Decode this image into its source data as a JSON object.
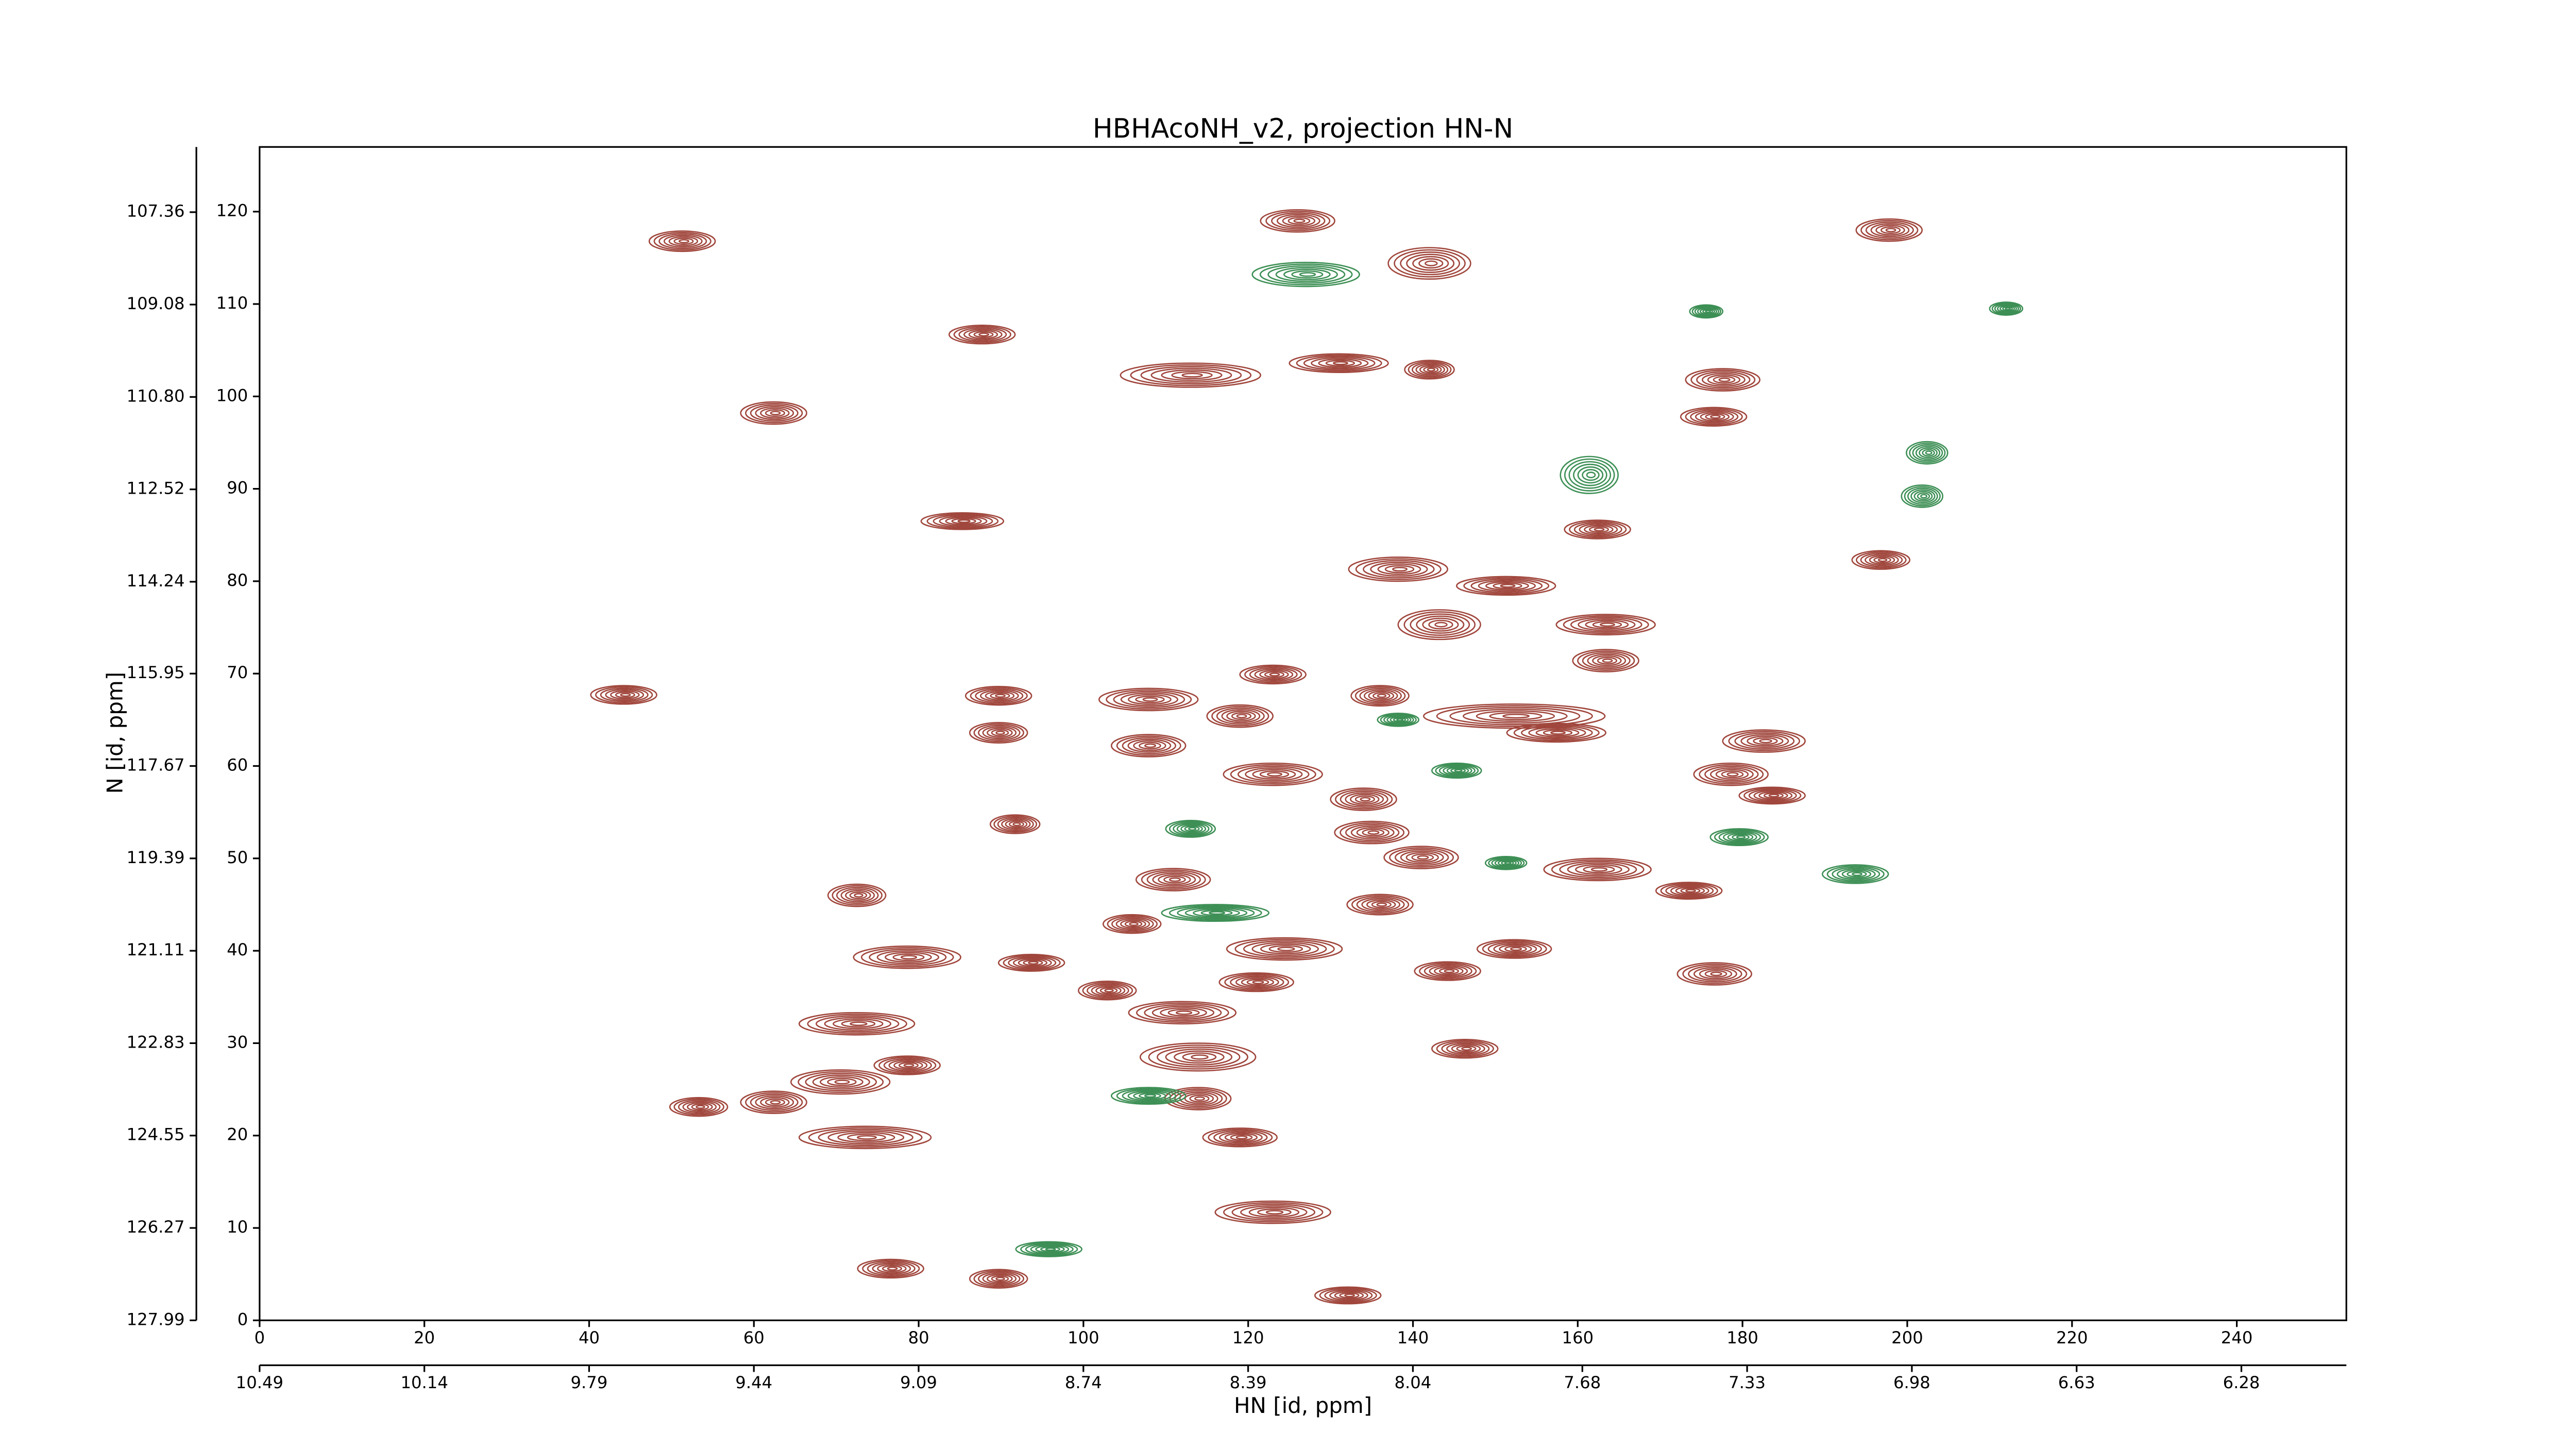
{
  "chart_data": {
    "type": "contour",
    "title": "HBHAcoNH_v2, projection HN-N",
    "x_label": "HN [id, ppm]",
    "y_label": "N [id, ppm]",
    "xlim": [
      0,
      253.3
    ],
    "xticks": [
      0,
      20,
      40,
      60,
      80,
      100,
      120,
      140,
      160,
      180,
      200,
      220,
      240
    ],
    "x2lim": [
      10.49,
      6.057
    ],
    "x2ticks": [
      10.49,
      10.14,
      9.79,
      9.44,
      9.09,
      8.74,
      8.39,
      8.04,
      7.68,
      7.33,
      6.98,
      6.63,
      6.28
    ],
    "ylim": [
      127.99,
      106.146
    ],
    "yticks": [
      127.99,
      126.27,
      124.55,
      122.83,
      121.11,
      119.39,
      117.67,
      115.95,
      114.24,
      112.52,
      {
        "value": 110.8,
        "label": "110.80"
      },
      109.08,
      107.36
    ],
    "y2lim": [
      0,
      127
    ],
    "y2ticks": [
      0,
      10,
      20,
      30,
      40,
      50,
      60,
      70,
      80,
      90,
      100,
      110,
      120
    ],
    "series": [
      {
        "color": "#a0463c",
        "axis": "y2",
        "peaks": [
          [
            51.3,
            116.8,
            8,
            2.2
          ],
          [
            126,
            119,
            9,
            2.4
          ],
          [
            142,
            114.4,
            10,
            3.4
          ],
          [
            87.7,
            106.7,
            8,
            2
          ],
          [
            113,
            102.3,
            17,
            2.6
          ],
          [
            131,
            103.6,
            12,
            2
          ],
          [
            142,
            102.9,
            6,
            2
          ],
          [
            177.6,
            101.8,
            9,
            2.4
          ],
          [
            176.5,
            97.8,
            8,
            2
          ],
          [
            62.4,
            98.2,
            8,
            2.4
          ],
          [
            197.8,
            118,
            8,
            2.4
          ],
          [
            85.3,
            86.5,
            10,
            1.8
          ],
          [
            162.4,
            85.6,
            8,
            2
          ],
          [
            138.2,
            81.3,
            12,
            2.6
          ],
          [
            151.3,
            79.5,
            12,
            2
          ],
          [
            196.8,
            82.3,
            7,
            2
          ],
          [
            143.2,
            75.3,
            10,
            3.2
          ],
          [
            163.4,
            75.3,
            12,
            2.2
          ],
          [
            163.4,
            71.4,
            8,
            2.4
          ],
          [
            44.2,
            67.7,
            8,
            2
          ],
          [
            89.7,
            67.6,
            8,
            2
          ],
          [
            89.7,
            63.6,
            7,
            2.2
          ],
          [
            107.9,
            67.2,
            12,
            2.4
          ],
          [
            107.9,
            62.2,
            9,
            2.4
          ],
          [
            123,
            69.9,
            8,
            2
          ],
          [
            119,
            65.4,
            8,
            2.4
          ],
          [
            123,
            59.1,
            12,
            2.4
          ],
          [
            136,
            67.6,
            7,
            2.2
          ],
          [
            152.3,
            65.4,
            22,
            2.6
          ],
          [
            157.4,
            63.6,
            12,
            2
          ],
          [
            178.6,
            59.1,
            9,
            2.4
          ],
          [
            182.6,
            62.7,
            10,
            2.4
          ],
          [
            183.6,
            56.8,
            8,
            1.8
          ],
          [
            91.7,
            53.7,
            6,
            2
          ],
          [
            134,
            56.4,
            8,
            2.4
          ],
          [
            135,
            52.8,
            9,
            2.4
          ],
          [
            141,
            50.1,
            9,
            2.4
          ],
          [
            162.4,
            48.8,
            13,
            2.4
          ],
          [
            173.5,
            46.5,
            8,
            1.8
          ],
          [
            72.5,
            46,
            7,
            2.4
          ],
          [
            110.9,
            47.7,
            9,
            2.4
          ],
          [
            105.9,
            42.9,
            7,
            2
          ],
          [
            124.4,
            40.2,
            14,
            2.4
          ],
          [
            136,
            45,
            8,
            2.2
          ],
          [
            152.3,
            40.2,
            9,
            2
          ],
          [
            144.2,
            37.8,
            8,
            2
          ],
          [
            78.6,
            39.3,
            13,
            2.4
          ],
          [
            93.7,
            38.7,
            8,
            1.8
          ],
          [
            121,
            36.6,
            9,
            2
          ],
          [
            102.9,
            35.7,
            7,
            2
          ],
          [
            176.6,
            37.5,
            9,
            2.4
          ],
          [
            72.5,
            32.1,
            14,
            2.4
          ],
          [
            112,
            33.3,
            13,
            2.4
          ],
          [
            113.9,
            28.5,
            14,
            3
          ],
          [
            78.6,
            27.6,
            8,
            2
          ],
          [
            70.5,
            25.8,
            12,
            2.6
          ],
          [
            53.3,
            23.1,
            7,
            2
          ],
          [
            62.4,
            23.6,
            8,
            2.4
          ],
          [
            73.5,
            19.8,
            16,
            2.4
          ],
          [
            113.9,
            24,
            8,
            2.4
          ],
          [
            119,
            19.8,
            9,
            2
          ],
          [
            146.3,
            29.4,
            8,
            2
          ],
          [
            123,
            11.7,
            14,
            2.4
          ],
          [
            76.6,
            5.6,
            8,
            2
          ],
          [
            89.7,
            4.5,
            7,
            2
          ],
          [
            132.1,
            2.7,
            8,
            1.8
          ]
        ]
      },
      {
        "color": "#3d8f55",
        "axis": "y2",
        "peaks": [
          [
            127,
            113.2,
            13,
            2.6
          ],
          [
            161.4,
            91.5,
            7,
            4
          ],
          [
            202.4,
            93.9,
            5,
            2.4
          ],
          [
            201.8,
            89.2,
            5,
            2.4
          ],
          [
            212,
            109.5,
            4,
            1.4
          ],
          [
            175.6,
            109.2,
            4,
            1.4
          ],
          [
            138.2,
            65,
            5,
            1.4
          ],
          [
            145.3,
            59.5,
            6,
            1.6
          ],
          [
            113,
            53.2,
            6,
            1.8
          ],
          [
            151.3,
            49.5,
            5,
            1.4
          ],
          [
            179.6,
            52.3,
            7,
            1.8
          ],
          [
            193.7,
            48.3,
            8,
            2
          ],
          [
            116,
            44.1,
            13,
            1.8
          ],
          [
            107.9,
            24.3,
            9,
            1.8
          ],
          [
            95.8,
            7.7,
            8,
            1.6
          ]
        ]
      }
    ]
  }
}
